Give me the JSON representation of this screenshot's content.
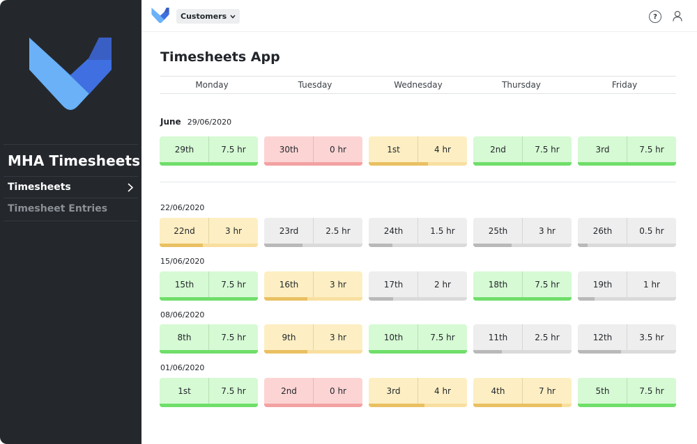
{
  "sidebar": {
    "title": "MHA Timesheets",
    "items": [
      {
        "label": "Timesheets",
        "active": true
      },
      {
        "label": "Timesheet Entries",
        "active": false
      }
    ]
  },
  "topbar": {
    "customers_label": "Customers",
    "help_label": "?"
  },
  "main": {
    "title": "Timesheets App",
    "days": [
      "Monday",
      "Tuesday",
      "Wednesday",
      "Thursday",
      "Friday"
    ],
    "weeks": [
      {
        "month": "June",
        "date": "29/06/2020",
        "cells": [
          {
            "day": "29th",
            "hours": "7.5 hr",
            "status": "green",
            "progress": 1.0
          },
          {
            "day": "30th",
            "hours": "0 hr",
            "status": "red",
            "progress": 0.0
          },
          {
            "day": "1st",
            "hours": "4 hr",
            "status": "yellow",
            "progress": 0.6
          },
          {
            "day": "2nd",
            "hours": "7.5 hr",
            "status": "green",
            "progress": 1.0
          },
          {
            "day": "3rd",
            "hours": "7.5 hr",
            "status": "green",
            "progress": 1.0
          }
        ]
      },
      {
        "month": "",
        "date": "22/06/2020",
        "cells": [
          {
            "day": "22nd",
            "hours": "3 hr",
            "status": "yellow",
            "progress": 0.44
          },
          {
            "day": "23rd",
            "hours": "2.5 hr",
            "status": "grey",
            "progress": 0.39
          },
          {
            "day": "24th",
            "hours": "1.5 hr",
            "status": "grey",
            "progress": 0.24
          },
          {
            "day": "25th",
            "hours": "3 hr",
            "status": "grey",
            "progress": 0.39
          },
          {
            "day": "26th",
            "hours": "0.5 hr",
            "status": "grey",
            "progress": 0.1
          }
        ]
      },
      {
        "month": "",
        "date": "15/06/2020",
        "cells": [
          {
            "day": "15th",
            "hours": "7.5 hr",
            "status": "green",
            "progress": 1.0
          },
          {
            "day": "16th",
            "hours": "3 hr",
            "status": "yellow",
            "progress": 0.44
          },
          {
            "day": "17th",
            "hours": "2 hr",
            "status": "grey",
            "progress": 0.25
          },
          {
            "day": "18th",
            "hours": "7.5 hr",
            "status": "green",
            "progress": 1.0
          },
          {
            "day": "19th",
            "hours": "1 hr",
            "status": "grey",
            "progress": 0.17
          }
        ]
      },
      {
        "month": "",
        "date": "08/06/2020",
        "cells": [
          {
            "day": "8th",
            "hours": "7.5 hr",
            "status": "green",
            "progress": 1.0
          },
          {
            "day": "9th",
            "hours": "3 hr",
            "status": "yellow",
            "progress": 0.44
          },
          {
            "day": "10th",
            "hours": "7.5 hr",
            "status": "green",
            "progress": 1.0
          },
          {
            "day": "11th",
            "hours": "2.5 hr",
            "status": "grey",
            "progress": 0.29
          },
          {
            "day": "12th",
            "hours": "3.5 hr",
            "status": "grey",
            "progress": 0.44
          }
        ]
      },
      {
        "month": "",
        "date": "01/06/2020",
        "cells": [
          {
            "day": "1st",
            "hours": "7.5 hr",
            "status": "green",
            "progress": 1.0
          },
          {
            "day": "2nd",
            "hours": "0 hr",
            "status": "red",
            "progress": 0.0
          },
          {
            "day": "3rd",
            "hours": "4 hr",
            "status": "yellow",
            "progress": 0.57
          },
          {
            "day": "4th",
            "hours": "7 hr",
            "status": "yellow",
            "progress": 0.9
          },
          {
            "day": "5th",
            "hours": "7.5 hr",
            "status": "green",
            "progress": 1.0
          }
        ]
      }
    ]
  },
  "colors": {
    "sidebar_bg": "#24282d",
    "logo_light": "#6ab1f7",
    "logo_dark": "#3c6bd8",
    "green": "#6fde6a",
    "yellow": "#e9c062",
    "red": "#f08e8e",
    "grey": "#b9b9b9"
  }
}
